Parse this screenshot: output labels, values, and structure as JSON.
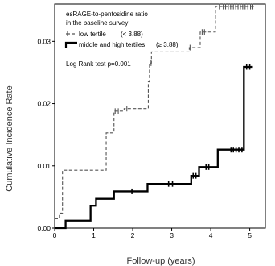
{
  "chart_data": {
    "type": "line",
    "title": "",
    "xlabel": "Follow-up (years)",
    "ylabel": "Cumulative Incidence Rate",
    "xlim": [
      0,
      5.4
    ],
    "ylim": [
      0,
      0.036
    ],
    "x_ticks": [
      "0",
      "1",
      "2",
      "3",
      "4",
      "5"
    ],
    "y_ticks": [
      "0.00",
      "0.01",
      "0.02",
      "0.03"
    ],
    "legend": {
      "title_line1": "esRAGE-to-pentosidine ratio",
      "title_line2": "in the baseline survey",
      "low_label": "low tertile",
      "low_cut": "(< 3.88)",
      "high_label": "middle and high tertiles",
      "high_cut": "(≥ 3.88)",
      "note": "Log Rank test  p=0.001",
      "position": "top-left"
    },
    "series": [
      {
        "name": "low tertile (< 3.88)",
        "style": "dashed",
        "steps": [
          [
            0.0,
            0.0015
          ],
          [
            0.12,
            0.0024
          ],
          [
            0.2,
            0.0093
          ],
          [
            1.0,
            0.0093
          ],
          [
            1.32,
            0.0153
          ],
          [
            1.52,
            0.0188
          ],
          [
            1.78,
            0.0192
          ],
          [
            2.4,
            0.0235
          ],
          [
            2.43,
            0.0265
          ],
          [
            2.48,
            0.0283
          ],
          [
            3.45,
            0.029
          ],
          [
            3.73,
            0.0315
          ],
          [
            4.12,
            0.0356
          ],
          [
            5.12,
            0.0356
          ]
        ],
        "censor_x": [
          1.55,
          1.63,
          1.85,
          2.47,
          3.47,
          3.78,
          3.84,
          4.22,
          4.32,
          4.38,
          4.45,
          4.51,
          4.58,
          4.64,
          4.7,
          4.76,
          4.82,
          4.88,
          4.95,
          5.02,
          5.08
        ]
      },
      {
        "name": "middle and high tertiles (≥ 3.88)",
        "style": "solid",
        "steps": [
          [
            0.0,
            0.0
          ],
          [
            0.28,
            0.0012
          ],
          [
            0.92,
            0.0036
          ],
          [
            1.06,
            0.0047
          ],
          [
            1.52,
            0.0059
          ],
          [
            2.38,
            0.0071
          ],
          [
            3.5,
            0.0084
          ],
          [
            3.7,
            0.0098
          ],
          [
            4.18,
            0.0126
          ],
          [
            4.85,
            0.0259
          ],
          [
            5.08,
            0.0259
          ]
        ],
        "censor_x": [
          1.98,
          2.92,
          3.02,
          3.55,
          3.62,
          3.88,
          3.95,
          4.52,
          4.58,
          4.65,
          4.72,
          4.8,
          4.92,
          5.0
        ]
      }
    ],
    "colors": {
      "line": "#000000",
      "dashed_line": "#555555"
    }
  }
}
